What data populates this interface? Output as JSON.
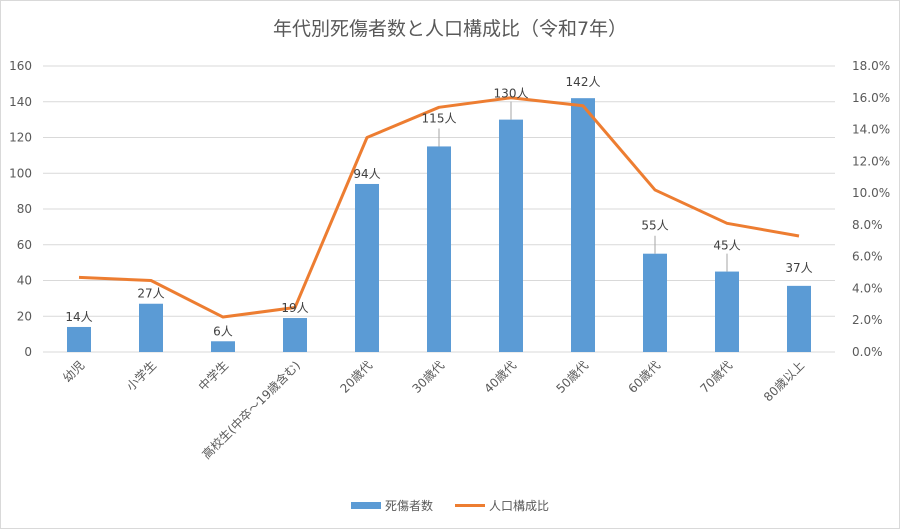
{
  "title": "年代別死傷者数と人口構成比（令和7年）",
  "legend": {
    "bar_label": "死傷者数",
    "line_label": "人口構成比"
  },
  "colors": {
    "bar": "#5b9bd5",
    "line": "#ed7d31",
    "grid": "#d9d9d9",
    "text": "#595959"
  },
  "chart_data": {
    "type": "bar+line",
    "title": "年代別死傷者数と人口構成比（令和7年）",
    "categories": [
      "幼児",
      "小学生",
      "中学生",
      "高校生(中卒～19歳含む)",
      "20歳代",
      "30歳代",
      "40歳代",
      "50歳代",
      "60歳代",
      "70歳代",
      "80歳以上"
    ],
    "series": [
      {
        "name": "死傷者数",
        "type": "bar",
        "axis": "left",
        "values": [
          14,
          27,
          6,
          19,
          94,
          115,
          130,
          142,
          55,
          45,
          37
        ],
        "data_labels": [
          "14人",
          "27人",
          "6人",
          "19人",
          "94人",
          "115人",
          "130人",
          "142人",
          "55人",
          "45人",
          "37人"
        ]
      },
      {
        "name": "人口構成比",
        "type": "line",
        "axis": "right",
        "values": [
          4.7,
          4.5,
          2.2,
          2.8,
          13.5,
          15.4,
          16.0,
          15.5,
          10.2,
          8.1,
          7.3
        ],
        "unit": "%"
      }
    ],
    "left_axis": {
      "ylim": [
        0,
        160
      ],
      "ticks": [
        "0",
        "20",
        "40",
        "60",
        "80",
        "100",
        "120",
        "140",
        "160"
      ]
    },
    "right_axis": {
      "ylim": [
        0,
        18
      ],
      "ticks": [
        "0.0%",
        "2.0%",
        "4.0%",
        "6.0%",
        "8.0%",
        "10.0%",
        "12.0%",
        "14.0%",
        "16.0%",
        "18.0%"
      ]
    },
    "grid": true,
    "legend_position": "bottom",
    "xlabel": "",
    "ylabel": ""
  }
}
